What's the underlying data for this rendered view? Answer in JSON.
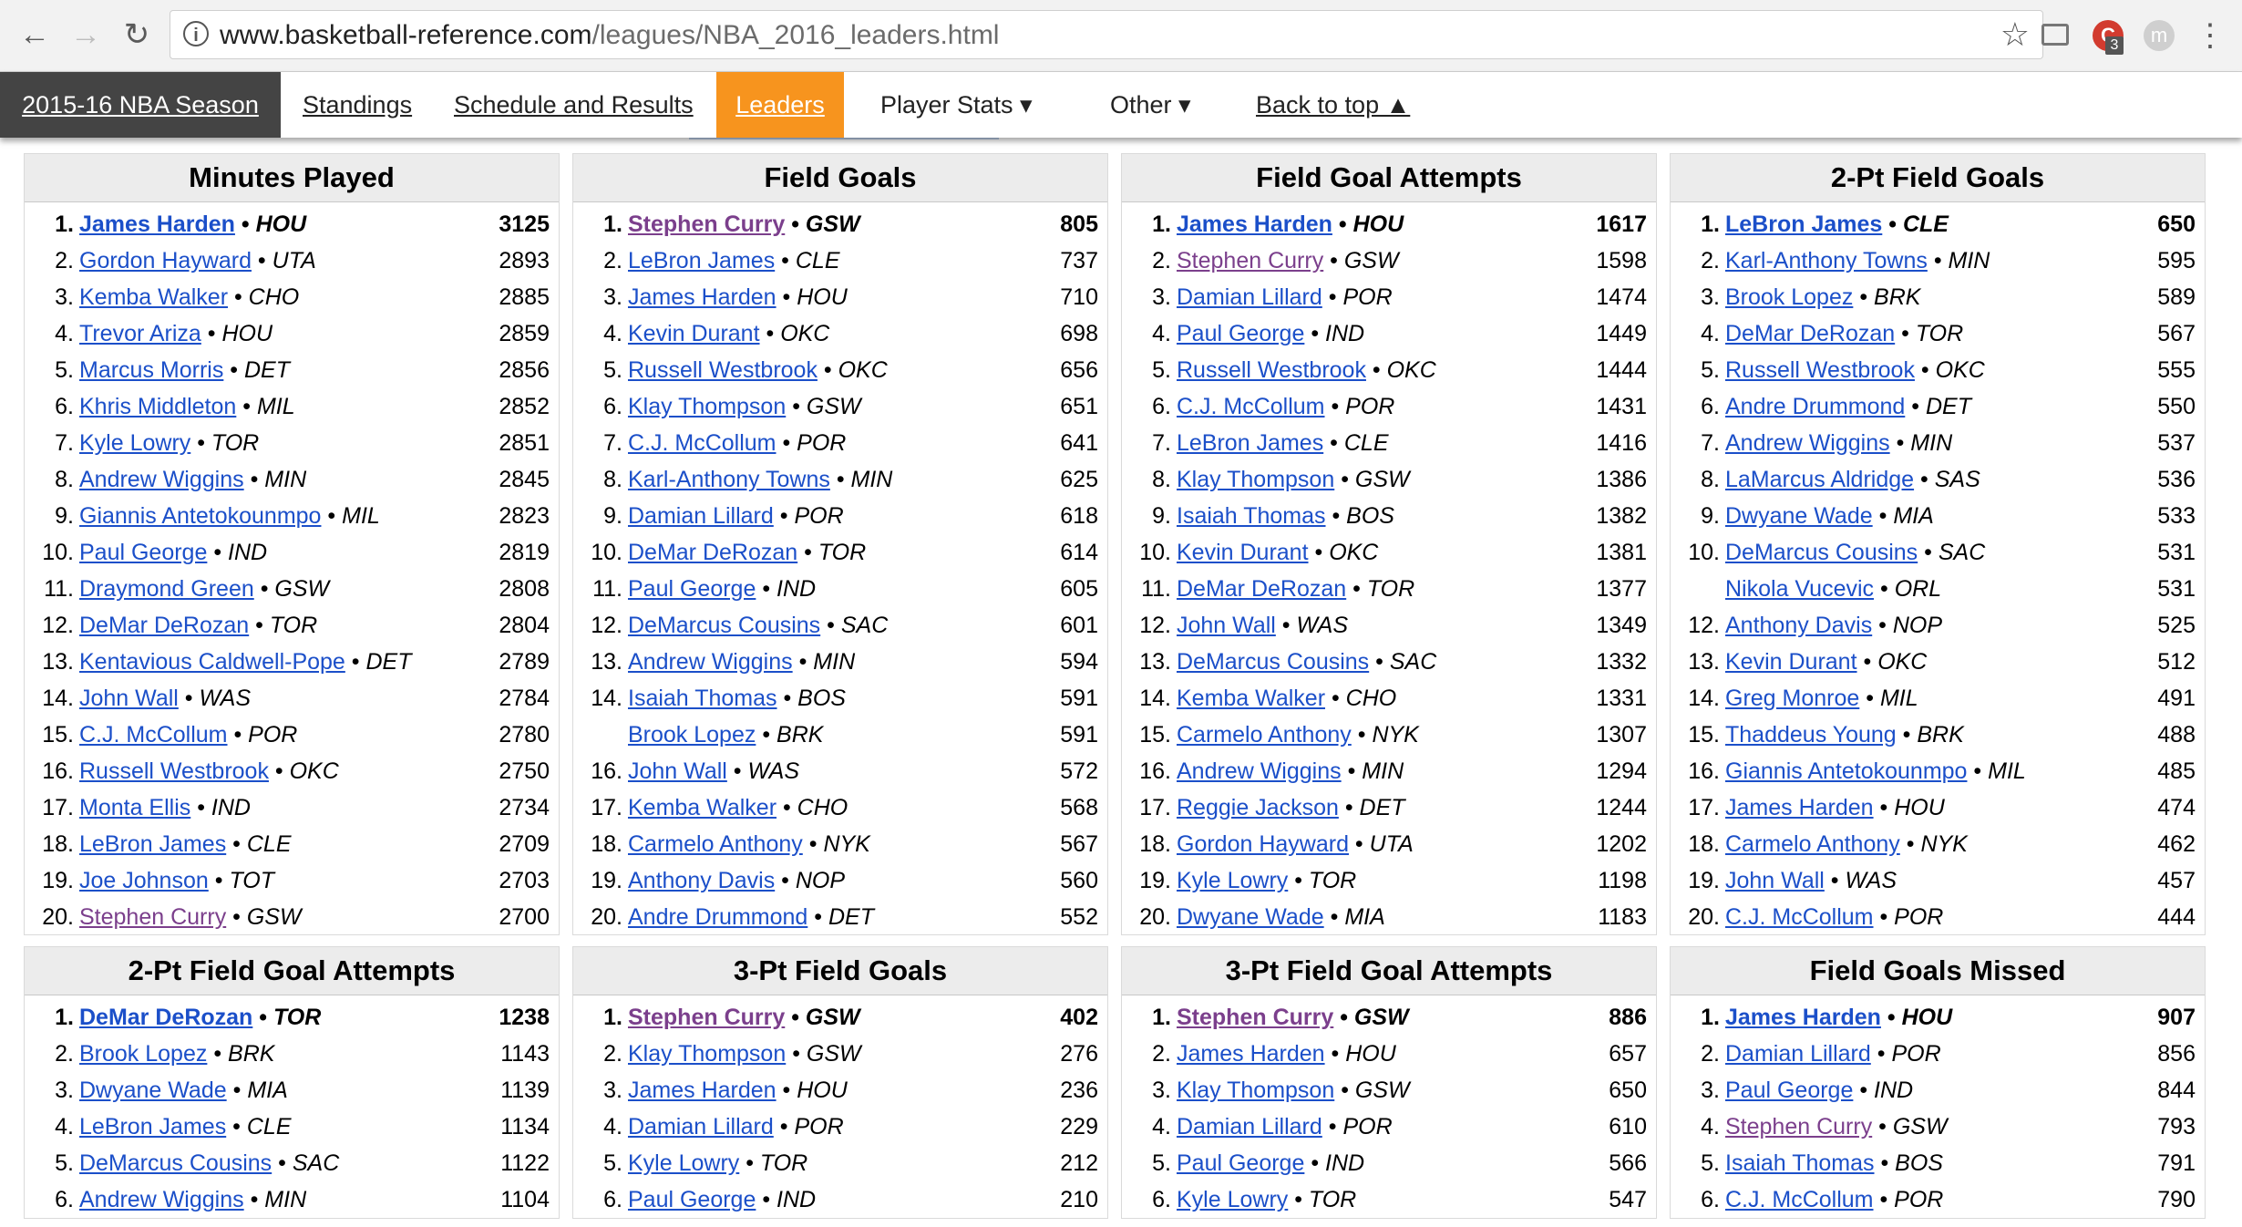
{
  "browser": {
    "url_domain": "www.basketball-reference.com",
    "url_path": "/leagues/NBA_2016_leaders.html",
    "ext_badge": "3",
    "avatar_letter": "m"
  },
  "nav": {
    "season": "2015-16 NBA Season",
    "standings": "Standings",
    "schedule": "Schedule and Results",
    "leaders": "Leaders",
    "player_stats": "Player Stats ▾",
    "other": "Other ▾",
    "back_to_top": "Back to top ▲"
  },
  "tables": [
    {
      "title": "Minutes Played",
      "rows": [
        {
          "rank": "1.",
          "name": "James Harden",
          "team": "HOU",
          "value": "3125"
        },
        {
          "rank": "2.",
          "name": "Gordon Hayward",
          "team": "UTA",
          "value": "2893"
        },
        {
          "rank": "3.",
          "name": "Kemba Walker",
          "team": "CHO",
          "value": "2885"
        },
        {
          "rank": "4.",
          "name": "Trevor Ariza",
          "team": "HOU",
          "value": "2859"
        },
        {
          "rank": "5.",
          "name": "Marcus Morris",
          "team": "DET",
          "value": "2856"
        },
        {
          "rank": "6.",
          "name": "Khris Middleton",
          "team": "MIL",
          "value": "2852"
        },
        {
          "rank": "7.",
          "name": "Kyle Lowry",
          "team": "TOR",
          "value": "2851"
        },
        {
          "rank": "8.",
          "name": "Andrew Wiggins",
          "team": "MIN",
          "value": "2845"
        },
        {
          "rank": "9.",
          "name": "Giannis Antetokounmpo",
          "team": "MIL",
          "value": "2823"
        },
        {
          "rank": "10.",
          "name": "Paul George",
          "team": "IND",
          "value": "2819"
        },
        {
          "rank": "11.",
          "name": "Draymond Green",
          "team": "GSW",
          "value": "2808"
        },
        {
          "rank": "12.",
          "name": "DeMar DeRozan",
          "team": "TOR",
          "value": "2804"
        },
        {
          "rank": "13.",
          "name": "Kentavious Caldwell-Pope",
          "team": "DET",
          "value": "2789"
        },
        {
          "rank": "14.",
          "name": "John Wall",
          "team": "WAS",
          "value": "2784"
        },
        {
          "rank": "15.",
          "name": "C.J. McCollum",
          "team": "POR",
          "value": "2780"
        },
        {
          "rank": "16.",
          "name": "Russell Westbrook",
          "team": "OKC",
          "value": "2750"
        },
        {
          "rank": "17.",
          "name": "Monta Ellis",
          "team": "IND",
          "value": "2734"
        },
        {
          "rank": "18.",
          "name": "LeBron James",
          "team": "CLE",
          "value": "2709"
        },
        {
          "rank": "19.",
          "name": "Joe Johnson",
          "team": "TOT",
          "value": "2703"
        },
        {
          "rank": "20.",
          "name": "Stephen Curry",
          "team": "GSW",
          "value": "2700",
          "visited": true
        }
      ]
    },
    {
      "title": "Field Goals",
      "rows": [
        {
          "rank": "1.",
          "name": "Stephen Curry",
          "team": "GSW",
          "value": "805",
          "visited": true
        },
        {
          "rank": "2.",
          "name": "LeBron James",
          "team": "CLE",
          "value": "737"
        },
        {
          "rank": "3.",
          "name": "James Harden",
          "team": "HOU",
          "value": "710"
        },
        {
          "rank": "4.",
          "name": "Kevin Durant",
          "team": "OKC",
          "value": "698"
        },
        {
          "rank": "5.",
          "name": "Russell Westbrook",
          "team": "OKC",
          "value": "656"
        },
        {
          "rank": "6.",
          "name": "Klay Thompson",
          "team": "GSW",
          "value": "651"
        },
        {
          "rank": "7.",
          "name": "C.J. McCollum",
          "team": "POR",
          "value": "641"
        },
        {
          "rank": "8.",
          "name": "Karl-Anthony Towns",
          "team": "MIN",
          "value": "625"
        },
        {
          "rank": "9.",
          "name": "Damian Lillard",
          "team": "POR",
          "value": "618"
        },
        {
          "rank": "10.",
          "name": "DeMar DeRozan",
          "team": "TOR",
          "value": "614"
        },
        {
          "rank": "11.",
          "name": "Paul George",
          "team": "IND",
          "value": "605"
        },
        {
          "rank": "12.",
          "name": "DeMarcus Cousins",
          "team": "SAC",
          "value": "601"
        },
        {
          "rank": "13.",
          "name": "Andrew Wiggins",
          "team": "MIN",
          "value": "594"
        },
        {
          "rank": "14.",
          "name": "Isaiah Thomas",
          "team": "BOS",
          "value": "591"
        },
        {
          "rank": "",
          "name": "Brook Lopez",
          "team": "BRK",
          "value": "591"
        },
        {
          "rank": "16.",
          "name": "John Wall",
          "team": "WAS",
          "value": "572"
        },
        {
          "rank": "17.",
          "name": "Kemba Walker",
          "team": "CHO",
          "value": "568"
        },
        {
          "rank": "18.",
          "name": "Carmelo Anthony",
          "team": "NYK",
          "value": "567"
        },
        {
          "rank": "19.",
          "name": "Anthony Davis",
          "team": "NOP",
          "value": "560"
        },
        {
          "rank": "20.",
          "name": "Andre Drummond",
          "team": "DET",
          "value": "552"
        }
      ]
    },
    {
      "title": "Field Goal Attempts",
      "rows": [
        {
          "rank": "1.",
          "name": "James Harden",
          "team": "HOU",
          "value": "1617"
        },
        {
          "rank": "2.",
          "name": "Stephen Curry",
          "team": "GSW",
          "value": "1598",
          "visited": true
        },
        {
          "rank": "3.",
          "name": "Damian Lillard",
          "team": "POR",
          "value": "1474"
        },
        {
          "rank": "4.",
          "name": "Paul George",
          "team": "IND",
          "value": "1449"
        },
        {
          "rank": "5.",
          "name": "Russell Westbrook",
          "team": "OKC",
          "value": "1444"
        },
        {
          "rank": "6.",
          "name": "C.J. McCollum",
          "team": "POR",
          "value": "1431"
        },
        {
          "rank": "7.",
          "name": "LeBron James",
          "team": "CLE",
          "value": "1416"
        },
        {
          "rank": "8.",
          "name": "Klay Thompson",
          "team": "GSW",
          "value": "1386"
        },
        {
          "rank": "9.",
          "name": "Isaiah Thomas",
          "team": "BOS",
          "value": "1382"
        },
        {
          "rank": "10.",
          "name": "Kevin Durant",
          "team": "OKC",
          "value": "1381"
        },
        {
          "rank": "11.",
          "name": "DeMar DeRozan",
          "team": "TOR",
          "value": "1377"
        },
        {
          "rank": "12.",
          "name": "John Wall",
          "team": "WAS",
          "value": "1349"
        },
        {
          "rank": "13.",
          "name": "DeMarcus Cousins",
          "team": "SAC",
          "value": "1332"
        },
        {
          "rank": "14.",
          "name": "Kemba Walker",
          "team": "CHO",
          "value": "1331"
        },
        {
          "rank": "15.",
          "name": "Carmelo Anthony",
          "team": "NYK",
          "value": "1307"
        },
        {
          "rank": "16.",
          "name": "Andrew Wiggins",
          "team": "MIN",
          "value": "1294"
        },
        {
          "rank": "17.",
          "name": "Reggie Jackson",
          "team": "DET",
          "value": "1244"
        },
        {
          "rank": "18.",
          "name": "Gordon Hayward",
          "team": "UTA",
          "value": "1202"
        },
        {
          "rank": "19.",
          "name": "Kyle Lowry",
          "team": "TOR",
          "value": "1198"
        },
        {
          "rank": "20.",
          "name": "Dwyane Wade",
          "team": "MIA",
          "value": "1183"
        }
      ]
    },
    {
      "title": "2-Pt Field Goals",
      "rows": [
        {
          "rank": "1.",
          "name": "LeBron James",
          "team": "CLE",
          "value": "650"
        },
        {
          "rank": "2.",
          "name": "Karl-Anthony Towns",
          "team": "MIN",
          "value": "595"
        },
        {
          "rank": "3.",
          "name": "Brook Lopez",
          "team": "BRK",
          "value": "589"
        },
        {
          "rank": "4.",
          "name": "DeMar DeRozan",
          "team": "TOR",
          "value": "567"
        },
        {
          "rank": "5.",
          "name": "Russell Westbrook",
          "team": "OKC",
          "value": "555"
        },
        {
          "rank": "6.",
          "name": "Andre Drummond",
          "team": "DET",
          "value": "550"
        },
        {
          "rank": "7.",
          "name": "Andrew Wiggins",
          "team": "MIN",
          "value": "537"
        },
        {
          "rank": "8.",
          "name": "LaMarcus Aldridge",
          "team": "SAS",
          "value": "536"
        },
        {
          "rank": "9.",
          "name": "Dwyane Wade",
          "team": "MIA",
          "value": "533"
        },
        {
          "rank": "10.",
          "name": "DeMarcus Cousins",
          "team": "SAC",
          "value": "531"
        },
        {
          "rank": "",
          "name": "Nikola Vucevic",
          "team": "ORL",
          "value": "531"
        },
        {
          "rank": "12.",
          "name": "Anthony Davis",
          "team": "NOP",
          "value": "525"
        },
        {
          "rank": "13.",
          "name": "Kevin Durant",
          "team": "OKC",
          "value": "512"
        },
        {
          "rank": "14.",
          "name": "Greg Monroe",
          "team": "MIL",
          "value": "491"
        },
        {
          "rank": "15.",
          "name": "Thaddeus Young",
          "team": "BRK",
          "value": "488"
        },
        {
          "rank": "16.",
          "name": "Giannis Antetokounmpo",
          "team": "MIL",
          "value": "485"
        },
        {
          "rank": "17.",
          "name": "James Harden",
          "team": "HOU",
          "value": "474"
        },
        {
          "rank": "18.",
          "name": "Carmelo Anthony",
          "team": "NYK",
          "value": "462"
        },
        {
          "rank": "19.",
          "name": "John Wall",
          "team": "WAS",
          "value": "457"
        },
        {
          "rank": "20.",
          "name": "C.J. McCollum",
          "team": "POR",
          "value": "444"
        }
      ]
    },
    {
      "title": "2-Pt Field Goal Attempts",
      "rows": [
        {
          "rank": "1.",
          "name": "DeMar DeRozan",
          "team": "TOR",
          "value": "1238"
        },
        {
          "rank": "2.",
          "name": "Brook Lopez",
          "team": "BRK",
          "value": "1143"
        },
        {
          "rank": "3.",
          "name": "Dwyane Wade",
          "team": "MIA",
          "value": "1139"
        },
        {
          "rank": "4.",
          "name": "LeBron James",
          "team": "CLE",
          "value": "1134"
        },
        {
          "rank": "5.",
          "name": "DeMarcus Cousins",
          "team": "SAC",
          "value": "1122"
        },
        {
          "rank": "6.",
          "name": "Andrew Wiggins",
          "team": "MIN",
          "value": "1104"
        }
      ]
    },
    {
      "title": "3-Pt Field Goals",
      "rows": [
        {
          "rank": "1.",
          "name": "Stephen Curry",
          "team": "GSW",
          "value": "402",
          "visited": true
        },
        {
          "rank": "2.",
          "name": "Klay Thompson",
          "team": "GSW",
          "value": "276"
        },
        {
          "rank": "3.",
          "name": "James Harden",
          "team": "HOU",
          "value": "236"
        },
        {
          "rank": "4.",
          "name": "Damian Lillard",
          "team": "POR",
          "value": "229"
        },
        {
          "rank": "5.",
          "name": "Kyle Lowry",
          "team": "TOR",
          "value": "212"
        },
        {
          "rank": "6.",
          "name": "Paul George",
          "team": "IND",
          "value": "210"
        }
      ]
    },
    {
      "title": "3-Pt Field Goal Attempts",
      "rows": [
        {
          "rank": "1.",
          "name": "Stephen Curry",
          "team": "GSW",
          "value": "886",
          "visited": true
        },
        {
          "rank": "2.",
          "name": "James Harden",
          "team": "HOU",
          "value": "657"
        },
        {
          "rank": "3.",
          "name": "Klay Thompson",
          "team": "GSW",
          "value": "650"
        },
        {
          "rank": "4.",
          "name": "Damian Lillard",
          "team": "POR",
          "value": "610"
        },
        {
          "rank": "5.",
          "name": "Paul George",
          "team": "IND",
          "value": "566"
        },
        {
          "rank": "6.",
          "name": "Kyle Lowry",
          "team": "TOR",
          "value": "547"
        }
      ]
    },
    {
      "title": "Field Goals Missed",
      "rows": [
        {
          "rank": "1.",
          "name": "James Harden",
          "team": "HOU",
          "value": "907"
        },
        {
          "rank": "2.",
          "name": "Damian Lillard",
          "team": "POR",
          "value": "856"
        },
        {
          "rank": "3.",
          "name": "Paul George",
          "team": "IND",
          "value": "844"
        },
        {
          "rank": "4.",
          "name": "Stephen Curry",
          "team": "GSW",
          "value": "793",
          "visited": true
        },
        {
          "rank": "5.",
          "name": "Isaiah Thomas",
          "team": "BOS",
          "value": "791"
        },
        {
          "rank": "6.",
          "name": "C.J. McCollum",
          "team": "POR",
          "value": "790"
        }
      ]
    }
  ]
}
